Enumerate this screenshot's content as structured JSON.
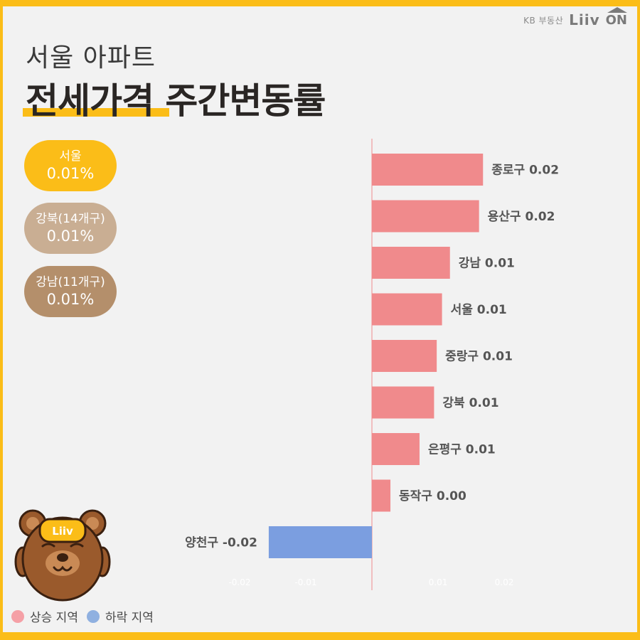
{
  "brand": {
    "kb": "KB 부동산",
    "liiv": "Liiv",
    "on": "ON"
  },
  "title": {
    "line1": "서울 아파트",
    "line2": "전세가격 주간변동률"
  },
  "summary": [
    {
      "name": "서울",
      "value": "0.01%"
    },
    {
      "name": "강북(14개구)",
      "value": "0.01%"
    },
    {
      "name": "강남(11개구)",
      "value": "0.01%"
    }
  ],
  "colors": {
    "accent": "#fbbd18",
    "rise": "#f08a8c",
    "fall": "#7b9ee0",
    "north": "#c9ae93",
    "south": "#b48f6b"
  },
  "mascot": {
    "badge": "Liiv"
  },
  "legend": {
    "rise": "상승 지역",
    "fall": "하락 지역"
  },
  "chart_data": {
    "type": "bar",
    "orientation": "horizontal",
    "categories": [
      "종로구",
      "용산구",
      "강남",
      "서울",
      "중랑구",
      "강북",
      "은평구",
      "동작구",
      "양천구"
    ],
    "values": [
      0.0168,
      0.0162,
      0.0118,
      0.0106,
      0.0098,
      0.0094,
      0.0072,
      0.0028,
      -0.0156
    ],
    "data_labels": [
      "종로구 0.02",
      "용산구 0.02",
      "강남 0.01",
      "서울 0.01",
      "중랑구 0.01",
      "강북 0.01",
      "은평구 0.01",
      "동작구 0.00",
      "양천구 -0.02"
    ],
    "xticks": [
      -0.02,
      -0.01,
      0.01,
      0.02
    ],
    "xtick_labels": [
      "-0.02",
      "-0.01",
      "0.01",
      "0.02"
    ],
    "xlim": [
      -0.022,
      0.02
    ],
    "grid": false,
    "legend": "bottom-left"
  }
}
